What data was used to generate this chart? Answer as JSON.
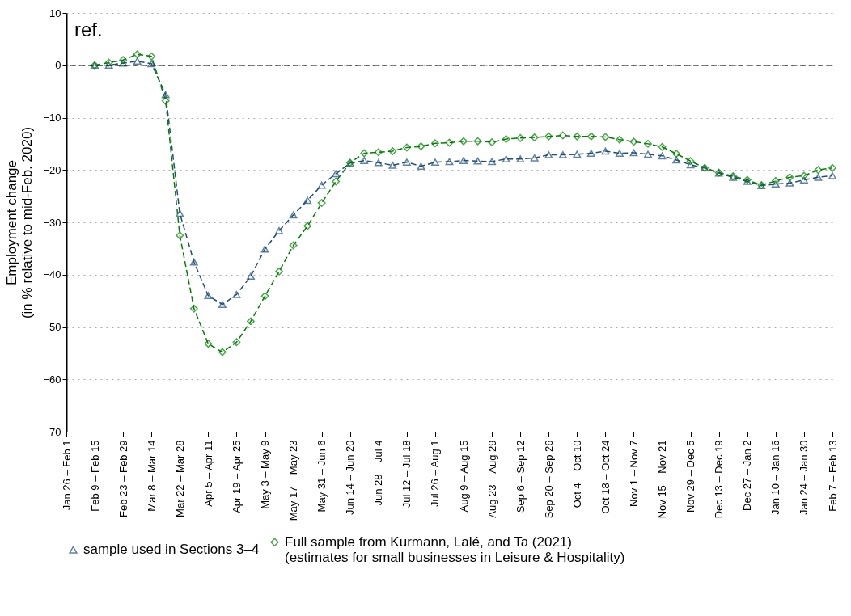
{
  "chart_data": {
    "type": "line",
    "ylabel": "Employment change\n(in % relative to mid-Feb. 2020)",
    "categories": [
      "Jan 26 – Feb 1",
      null,
      "Feb 9 – Feb 15",
      null,
      "Feb 23 – Feb 29",
      null,
      "Mar 8 – Mar 14",
      null,
      "Mar 22 – Mar 28",
      null,
      "Apr 5 – Apr 11",
      null,
      "Apr 19 – Apr 25",
      null,
      "May 3 – May 9",
      null,
      "May 17 – May 23",
      null,
      "May 31 – Jun 6",
      null,
      "Jun 14 – Jun 20",
      null,
      "Jun 28 – Jul 4",
      null,
      "Jul 12 – Jul 18",
      null,
      "Jul 26 – Aug 1",
      null,
      "Aug 9 – Aug 15",
      null,
      "Aug 23 – Aug 29",
      null,
      "Sep 6 – Sep 12",
      null,
      "Sep 20 – Sep 26",
      null,
      "Oct 4 – Oct 10",
      null,
      "Oct 18 – Oct 24",
      null,
      "Nov 1 – Nov 7",
      null,
      "Nov 15 – Nov 21",
      null,
      "Nov 29 – Dec 5",
      null,
      "Dec 13 – Dec 19",
      null,
      "Dec 27 – Jan 2",
      null,
      "Jan 10 – Jan 16",
      null,
      "Jan 24 – Jan 30",
      null,
      "Feb 7 – Feb 13"
    ],
    "series": [
      {
        "name": "sample used in Sections 3–4",
        "color": "#1f4e79",
        "marker": "triangle",
        "line_style": "dashed",
        "values": [
          null,
          null,
          0,
          0,
          0.4,
          0.8,
          0.3,
          -5.6,
          -28.3,
          -37.6,
          -44,
          -45.7,
          -43.8,
          -40.3,
          -35.1,
          -31.6,
          -28.6,
          -25.8,
          -22.9,
          -20.7,
          -18.7,
          -18.2,
          -18.6,
          -19.1,
          -18.5,
          -19.3,
          -18.5,
          -18.4,
          -18.2,
          -18.3,
          -18.4,
          -17.9,
          -17.9,
          -17.7,
          -17.1,
          -17.1,
          -17,
          -16.8,
          -16.4,
          -16.8,
          -16.7,
          -17,
          -17.3,
          -18.1,
          -19,
          -19.6,
          -20.6,
          -21.4,
          -22.2,
          -23,
          -22.7,
          -22.5,
          -21.9,
          -21.4,
          -21.1
        ]
      },
      {
        "name": "Full sample from Kurmann, Lalé, and Ta  (2021)\n(estimates for small businesses in Leisure & Hospitality)",
        "color": "#008000",
        "marker": "diamond",
        "line_style": "dashed",
        "values": [
          null,
          null,
          0,
          0.5,
          1,
          2.1,
          1.7,
          -6.8,
          -32.5,
          -46.5,
          -53.2,
          -54.8,
          -52.9,
          -48.9,
          -44.1,
          -39.4,
          -34.4,
          -30.7,
          -26.3,
          -22.2,
          -18.6,
          -16.8,
          -16.6,
          -16.4,
          -15.7,
          -15.5,
          -14.9,
          -14.8,
          -14.5,
          -14.5,
          -14.7,
          -14.1,
          -13.9,
          -13.8,
          -13.6,
          -13.4,
          -13.6,
          -13.6,
          -13.7,
          -14.2,
          -14.6,
          -15,
          -15.6,
          -16.9,
          -18.3,
          -19.6,
          -20.5,
          -21.2,
          -21.9,
          -22.9,
          -22.1,
          -21.4,
          -21.1,
          -20,
          -19.6
        ]
      }
    ],
    "ylim": [
      -70,
      10
    ],
    "yticks": [
      -70,
      -60,
      -50,
      -40,
      -30,
      -20,
      -10,
      0,
      10
    ],
    "grid": true,
    "legend": "bottom",
    "ref_lines": [
      {
        "axis": "y",
        "value": 0,
        "label": "ref."
      }
    ]
  }
}
